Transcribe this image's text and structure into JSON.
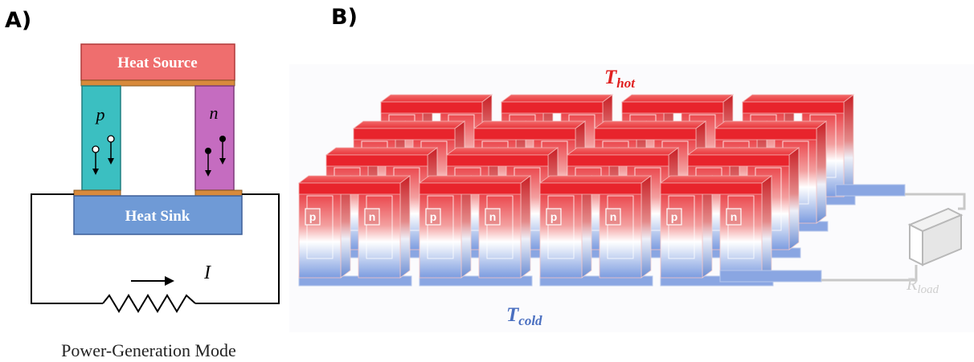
{
  "panel_a": {
    "label": "A)",
    "heat_source": "Heat Source",
    "heat_sink": "Heat Sink",
    "p_leg": "p",
    "n_leg": "n",
    "current_symbol": "I",
    "caption": "Power-Generation Mode",
    "colors": {
      "heat_source": "#ef6e6e",
      "heat_sink": "#6f9ad6",
      "p_leg": "#3bbfc1",
      "n_leg": "#c56cc0",
      "contact": "#d88a3c"
    }
  },
  "panel_b": {
    "label": "B)",
    "t_hot": "T",
    "t_hot_sub": "hot",
    "t_cold": "T",
    "t_cold_sub": "cold",
    "r_load": "R",
    "r_load_sub": "load",
    "front_leg_labels": [
      "p",
      "n",
      "p",
      "n",
      "p",
      "n",
      "p",
      "n"
    ],
    "colors": {
      "hot": "#e8242c",
      "cold": "#6a8fd8",
      "t_hot_text": "#e02020",
      "t_cold_text": "#4a6fc0",
      "load_wire": "#c8c8c8"
    }
  }
}
